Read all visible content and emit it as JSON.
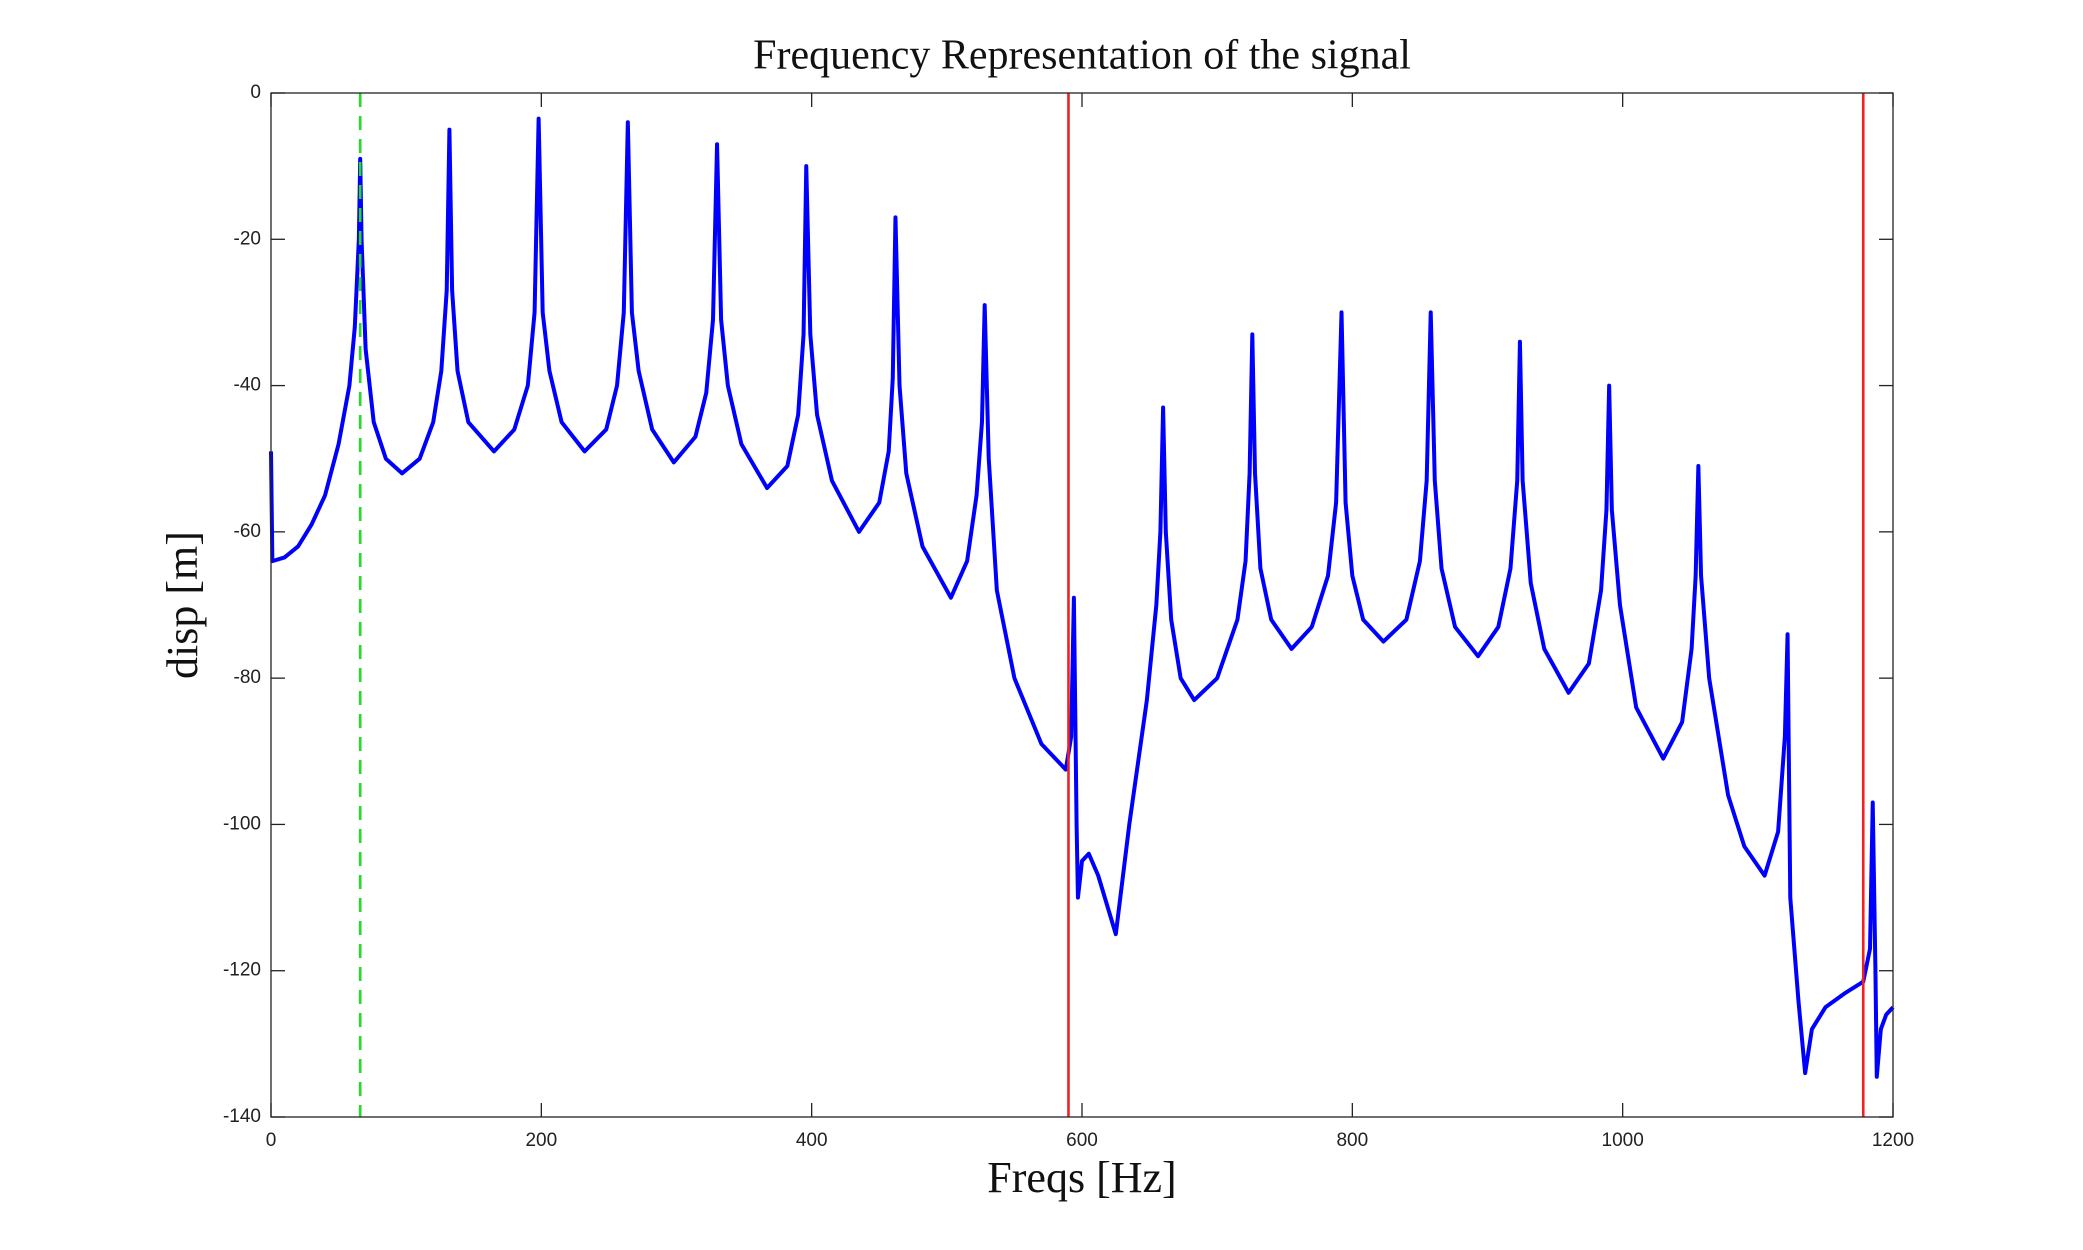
{
  "chart_data": {
    "type": "line",
    "title": "Frequency Representation of the signal",
    "xlabel": "Freqs [Hz]",
    "ylabel": "disp [m]",
    "xlim": [
      0,
      1200
    ],
    "ylim": [
      -140,
      0
    ],
    "xticks": [
      0,
      200,
      400,
      600,
      800,
      1000,
      1200
    ],
    "yticks": [
      -140,
      -120,
      -100,
      -80,
      -60,
      -40,
      -20,
      0
    ],
    "grid": false,
    "vlines": [
      {
        "x": 66,
        "color": "#22dd22",
        "style": "dashed"
      },
      {
        "x": 590,
        "color": "#ee2222",
        "style": "solid"
      },
      {
        "x": 1178,
        "color": "#ee2222",
        "style": "solid"
      }
    ],
    "x": [
      0,
      1,
      10,
      20,
      30,
      40,
      50,
      58,
      62,
      65,
      66,
      67,
      70,
      76,
      85,
      97,
      110,
      120,
      126,
      130,
      132,
      134,
      138,
      146,
      165,
      180,
      190,
      195,
      198,
      201,
      206,
      215,
      232,
      248,
      256,
      261,
      264,
      267,
      272,
      282,
      298,
      314,
      322,
      327,
      330,
      333,
      338,
      348,
      367,
      382,
      390,
      394,
      396,
      399,
      404,
      415,
      435,
      450,
      457,
      460,
      462,
      465,
      470,
      482,
      503,
      515,
      522,
      526,
      528,
      531,
      537,
      550,
      570,
      588,
      592,
      594,
      596,
      597,
      600,
      605,
      612,
      625,
      635,
      648,
      655,
      658,
      660,
      662,
      666,
      673,
      683,
      700,
      715,
      721,
      724,
      726,
      728,
      732,
      740,
      755,
      770,
      782,
      788,
      792,
      795,
      800,
      808,
      823,
      840,
      850,
      855,
      858,
      861,
      866,
      876,
      893,
      908,
      917,
      922,
      924,
      926,
      932,
      942,
      960,
      975,
      984,
      988,
      990,
      992,
      998,
      1010,
      1030,
      1044,
      1051,
      1054,
      1056,
      1058,
      1064,
      1078,
      1090,
      1105,
      1115,
      1120,
      1122,
      1124,
      1130,
      1135,
      1140,
      1150,
      1165,
      1178,
      1183,
      1185,
      1187,
      1188,
      1191,
      1195,
      1200
    ],
    "series": [
      {
        "name": "disp",
        "color": "#0000ff",
        "values": [
          -49,
          -64,
          -63.5,
          -62,
          -59,
          -55,
          -48,
          -40,
          -32,
          -20,
          -9,
          -20,
          -35,
          -45,
          -50,
          -52,
          -50,
          -45,
          -38,
          -27,
          -5,
          -27,
          -38,
          -45,
          -49,
          -46,
          -40,
          -30,
          -3.5,
          -30,
          -38,
          -45,
          -49,
          -46,
          -40,
          -30,
          -4,
          -30,
          -38,
          -46,
          -50.5,
          -47,
          -41,
          -31,
          -7,
          -31,
          -40,
          -48,
          -54,
          -51,
          -44,
          -33,
          -10,
          -33,
          -44,
          -53,
          -60,
          -56,
          -49,
          -39,
          -17,
          -40,
          -52,
          -62,
          -69,
          -64,
          -55,
          -45,
          -29,
          -50,
          -68,
          -80,
          -89,
          -92.5,
          -88,
          -69,
          -100,
          -110,
          -105,
          -104,
          -107,
          -115,
          -100,
          -83,
          -70,
          -60,
          -43,
          -60,
          -72,
          -80,
          -83,
          -80,
          -72,
          -64,
          -52,
          -33,
          -52,
          -65,
          -72,
          -76,
          -73,
          -66,
          -56,
          -30,
          -56,
          -66,
          -72,
          -75,
          -72,
          -64,
          -53,
          -30,
          -53,
          -65,
          -73,
          -77,
          -73,
          -65,
          -53,
          -34,
          -53,
          -67,
          -76,
          -82,
          -78,
          -68,
          -57,
          -40,
          -57,
          -70,
          -84,
          -91,
          -86,
          -76,
          -66,
          -51,
          -66,
          -80,
          -96,
          -103,
          -107,
          -101,
          -88,
          -74,
          -110,
          -124,
          -134,
          -128,
          -125,
          -123,
          -121.5,
          -117,
          -97,
          -120,
          -134.5,
          -128,
          -126,
          -125
        ]
      }
    ]
  }
}
